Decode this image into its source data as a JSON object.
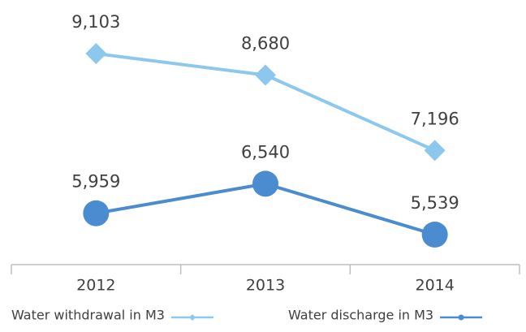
{
  "chart_data": {
    "type": "line",
    "categories": [
      "2012",
      "2013",
      "2014"
    ],
    "series": [
      {
        "name": "Water withdrawal in M3",
        "color": "#8cc8ee",
        "marker": "diamond",
        "values": [
          9103,
          8680,
          7196
        ],
        "value_labels": [
          "9,103",
          "8,680",
          "7,196"
        ]
      },
      {
        "name": "Water discharge in M3",
        "color": "#4a8ccf",
        "marker": "circle",
        "values": [
          5959,
          6540,
          5539
        ],
        "value_labels": [
          "5,959",
          "6,540",
          "5,539"
        ]
      }
    ],
    "legend": "bottom"
  }
}
